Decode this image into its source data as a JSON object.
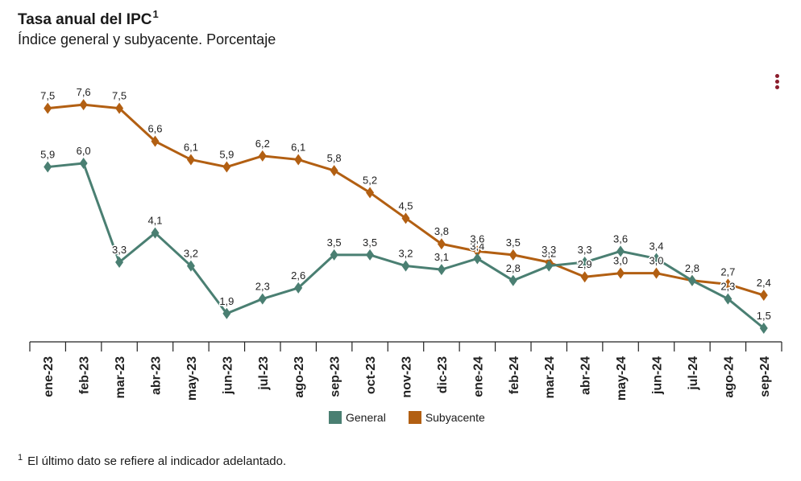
{
  "header": {
    "title": "Tasa anual del IPC",
    "title_sup": "1",
    "subtitle": "Índice general y subyacente. Porcentaje"
  },
  "menu_icon": "more-vertical-icon",
  "footnote": {
    "sup": "1",
    "text": "El último dato se refiere al indicador adelantado."
  },
  "chart_data": {
    "type": "line",
    "categories": [
      "ene-23",
      "feb-23",
      "mar-23",
      "abr-23",
      "may-23",
      "jun-23",
      "jul-23",
      "ago-23",
      "sep-23",
      "oct-23",
      "nov-23",
      "dic-23",
      "ene-24",
      "feb-24",
      "mar-24",
      "abr-24",
      "may-24",
      "jun-24",
      "jul-24",
      "ago-24",
      "sep-24"
    ],
    "series": [
      {
        "name": "General",
        "color": "#4a7f72",
        "values": [
          5.9,
          6.0,
          3.3,
          4.1,
          3.2,
          1.9,
          2.3,
          2.6,
          3.5,
          3.5,
          3.2,
          3.1,
          3.4,
          2.8,
          3.2,
          3.3,
          3.6,
          3.4,
          2.8,
          2.3,
          1.5
        ],
        "labels": [
          "5,9",
          "6,0",
          "3,3",
          "4,1",
          "3,2",
          "1,9",
          "2,3",
          "2,6",
          "3,5",
          "3,5",
          "3,2",
          "3,1",
          "3,4",
          "2,8",
          "3,2",
          "3,3",
          "3,6",
          "3,4",
          "2,8",
          "2,3",
          "1,5"
        ]
      },
      {
        "name": "Subyacente",
        "color": "#b25f12",
        "values": [
          7.5,
          7.6,
          7.5,
          6.6,
          6.1,
          5.9,
          6.2,
          6.1,
          5.8,
          5.2,
          4.5,
          3.8,
          3.6,
          3.5,
          3.3,
          2.9,
          3.0,
          3.0,
          2.8,
          2.7,
          2.4
        ],
        "labels": [
          "7,5",
          "7,6",
          "7,5",
          "6,6",
          "6,1",
          "5,9",
          "6,2",
          "6,1",
          "5,8",
          "5,2",
          "4,5",
          "3,8",
          "3,6",
          "3,5",
          "3,3",
          "2,9",
          "3,0",
          "3,0",
          "2,8",
          "2,7",
          "2,4"
        ]
      }
    ],
    "ylim": [
      0.7,
      8.2
    ],
    "grid": false,
    "legend_position": "bottom-center"
  }
}
